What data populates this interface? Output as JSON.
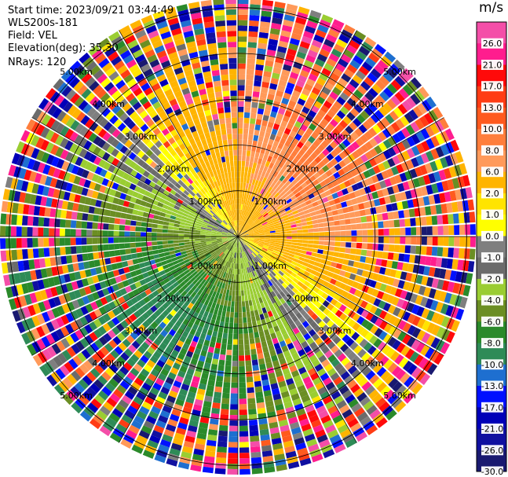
{
  "header": {
    "start_time": "Start time: 2023/09/21 03:44:49",
    "station": "WLS200s-181",
    "field": "Field: VEL",
    "elevation": "Elevation(deg): 35.30",
    "nrays": "NRays: 120"
  },
  "chart_data": {
    "type": "heatmap",
    "projection": "polar-ppi",
    "field": "VEL",
    "units": "m/s",
    "n_rays": 120,
    "range_rings_km": [
      1,
      2,
      3,
      4,
      5
    ],
    "ring_labels": [
      "1.00km",
      "2.00km",
      "3.00km",
      "4.00km",
      "5.00km"
    ],
    "max_range_km": 5.2,
    "spokes_deg": [
      0,
      30,
      60,
      90,
      120,
      150,
      180,
      210,
      240,
      270,
      300,
      330
    ],
    "velocity_pattern": {
      "approaching_sector_center_deg": 225,
      "receding_sector_center_deg": 45,
      "approaching_peak_ms": -9,
      "receding_peak_ms": 9,
      "clean_range_km": 2.2
    },
    "colorbar": {
      "title": "m/s",
      "tick_labels": [
        "26.0",
        "21.0",
        "17.0",
        "13.0",
        "10.0",
        "8.0",
        "6.0",
        "2.0",
        "1.0",
        "0.0",
        "-1.0",
        "-2.0",
        "-4.0",
        "-6.0",
        "-8.0",
        "-10.0",
        "-13.0",
        "-17.0",
        "-21.0",
        "-26.0",
        "-30.0"
      ],
      "bounds": [
        30,
        26,
        21,
        17,
        13,
        10,
        8,
        6,
        2,
        1,
        0,
        -1,
        -2,
        -4,
        -6,
        -8,
        -10,
        -13,
        -17,
        -21,
        -26,
        -30
      ],
      "colors": [
        "#f44ea8",
        "#ff1d8e",
        "#ff0a0a",
        "#ff3c14",
        "#ff5a1e",
        "#ff7e3c",
        "#ff9a5a",
        "#ffb400",
        "#ffe400",
        "#ffff00",
        "#7f7f7f",
        "#6b6b6b",
        "#9acd32",
        "#6b8e23",
        "#2a8a2a",
        "#2e8b57",
        "#1e6fd0",
        "#0010ff",
        "#0000b8",
        "#1010a0",
        "#191970"
      ]
    }
  }
}
